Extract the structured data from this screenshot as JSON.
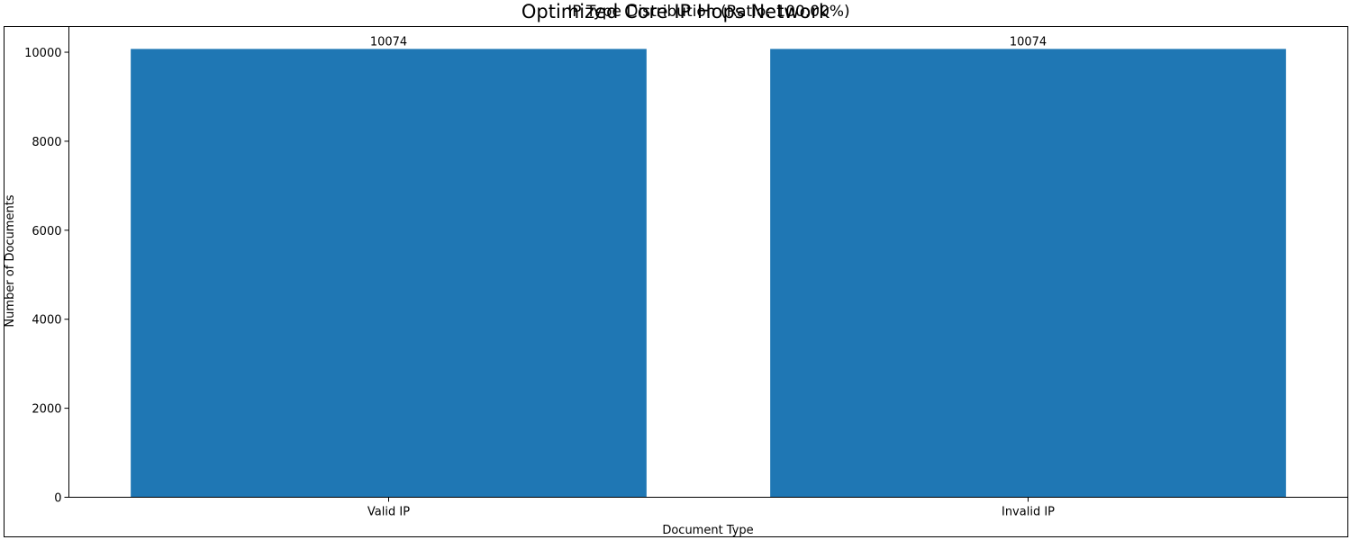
{
  "figure_title": "Optimized Core IP Hops Network",
  "chart_data": {
    "type": "bar",
    "title": "IP Type Distribution (Ratio: 100.00%)",
    "xlabel": "Document Type",
    "ylabel": "Number of Documents",
    "categories": [
      "Valid IP",
      "Invalid IP"
    ],
    "values": [
      10074,
      10074
    ],
    "bar_labels": [
      "10074",
      "10074"
    ],
    "ylim": [
      0,
      10577
    ],
    "yticks": [
      0,
      2000,
      4000,
      6000,
      8000,
      10000
    ],
    "grid": false,
    "bar_color": "#1f77b4"
  }
}
